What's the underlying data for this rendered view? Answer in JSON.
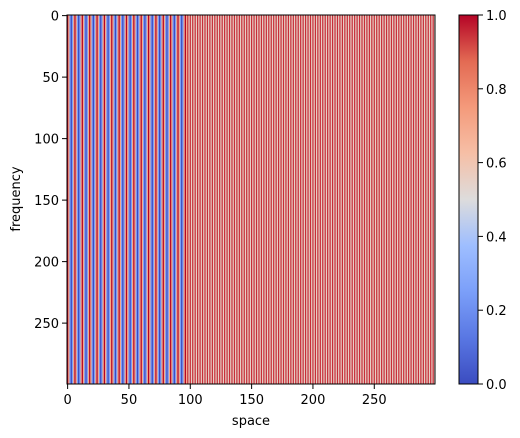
{
  "chart_data": {
    "type": "heatmap",
    "title": "",
    "xlabel": "space",
    "ylabel": "frequency",
    "x_range": [
      0,
      299
    ],
    "y_range": [
      0,
      299
    ],
    "y_inverted": true,
    "x_ticks": [
      0,
      50,
      100,
      150,
      200,
      250
    ],
    "y_ticks": [
      0,
      50,
      100,
      150,
      200,
      250
    ],
    "colormap": "coolwarm",
    "colorbar": {
      "range": [
        0,
        1
      ],
      "ticks": [
        0.0,
        0.2,
        0.4,
        0.6,
        0.8,
        1.0
      ],
      "tick_labels": [
        "0.0",
        "0.2",
        "0.4",
        "0.6",
        "0.8",
        "1.0"
      ]
    },
    "pattern": {
      "description_of_values": "values constant along frequency; vary along space as vertical stripes",
      "segments": [
        {
          "space_from": 0,
          "space_to": 98,
          "period": 6,
          "values": [
            1.0,
            0.7,
            0.25,
            0.0,
            0.25,
            0.7
          ]
        },
        {
          "space_from": 98,
          "space_to": 300,
          "period": 2,
          "values": [
            0.95,
            0.55
          ]
        }
      ]
    }
  },
  "x_tick_labels": [
    "0",
    "50",
    "100",
    "150",
    "200",
    "250"
  ],
  "y_tick_labels": [
    "0",
    "50",
    "100",
    "150",
    "200",
    "250"
  ],
  "labels": {
    "xlabel": "space",
    "ylabel": "frequency"
  }
}
